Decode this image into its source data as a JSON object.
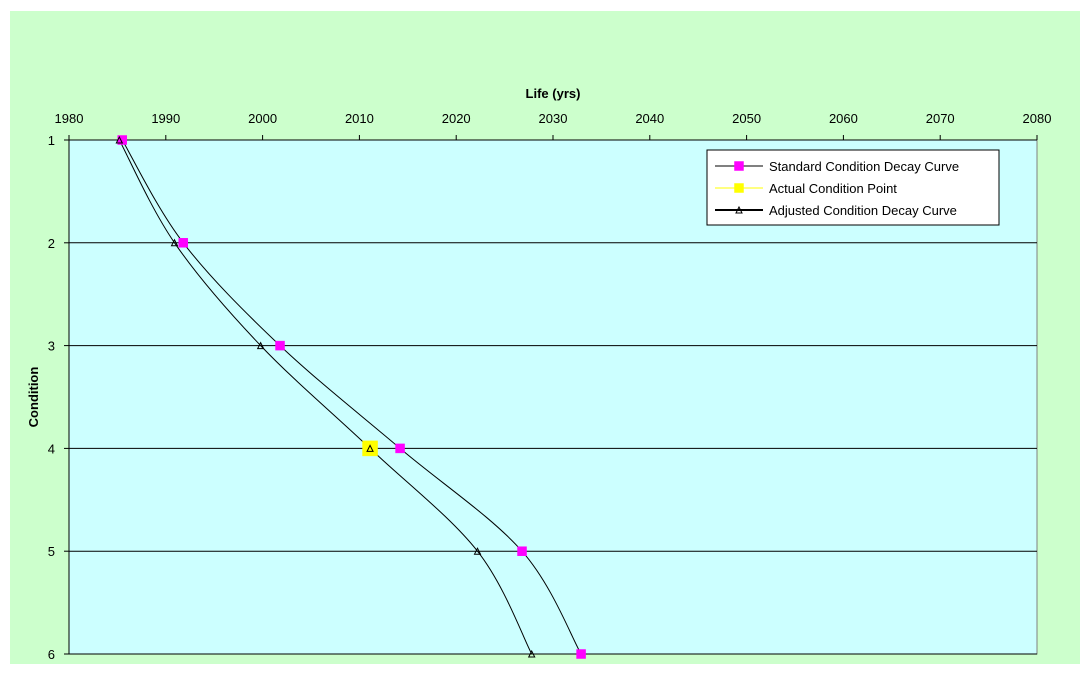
{
  "colors": {
    "chart_background": "#ccffcc",
    "plot_background": "#ccffff",
    "standard_marker": "#ff00ff",
    "actual_marker": "#ffff00",
    "line": "#000000"
  },
  "chart_data": {
    "type": "line",
    "title": "",
    "xlabel": "Life (yrs)",
    "ylabel": "Condition",
    "x_axis_position": "top",
    "y_axis_reversed": true,
    "xlim": [
      1980,
      2080
    ],
    "ylim": [
      1,
      6
    ],
    "x_ticks": [
      1980,
      1990,
      2000,
      2010,
      2020,
      2030,
      2040,
      2050,
      2060,
      2070,
      2080
    ],
    "y_ticks": [
      1,
      2,
      3,
      4,
      5,
      6
    ],
    "grid": "horizontal",
    "smooth": true,
    "legend_position": "top-right",
    "series": [
      {
        "name": "Standard Condition Decay Curve",
        "marker": "square",
        "color": "#ff00ff",
        "points": [
          {
            "x": 1985.5,
            "y": 1
          },
          {
            "x": 1991.8,
            "y": 2
          },
          {
            "x": 2001.8,
            "y": 3
          },
          {
            "x": 2014.2,
            "y": 4
          },
          {
            "x": 2026.8,
            "y": 5
          },
          {
            "x": 2032.9,
            "y": 6
          }
        ]
      },
      {
        "name": "Actual Condition Point",
        "marker": "square",
        "color": "#ffff00",
        "points": [
          {
            "x": 2011.1,
            "y": 4
          }
        ]
      },
      {
        "name": "Adjusted Condition Decay Curve",
        "marker": "triangle",
        "color": "#000000",
        "points": [
          {
            "x": 1985.2,
            "y": 1
          },
          {
            "x": 1990.9,
            "y": 2
          },
          {
            "x": 1999.8,
            "y": 3
          },
          {
            "x": 2011.1,
            "y": 4
          },
          {
            "x": 2022.2,
            "y": 5
          },
          {
            "x": 2027.8,
            "y": 6
          }
        ]
      }
    ]
  }
}
